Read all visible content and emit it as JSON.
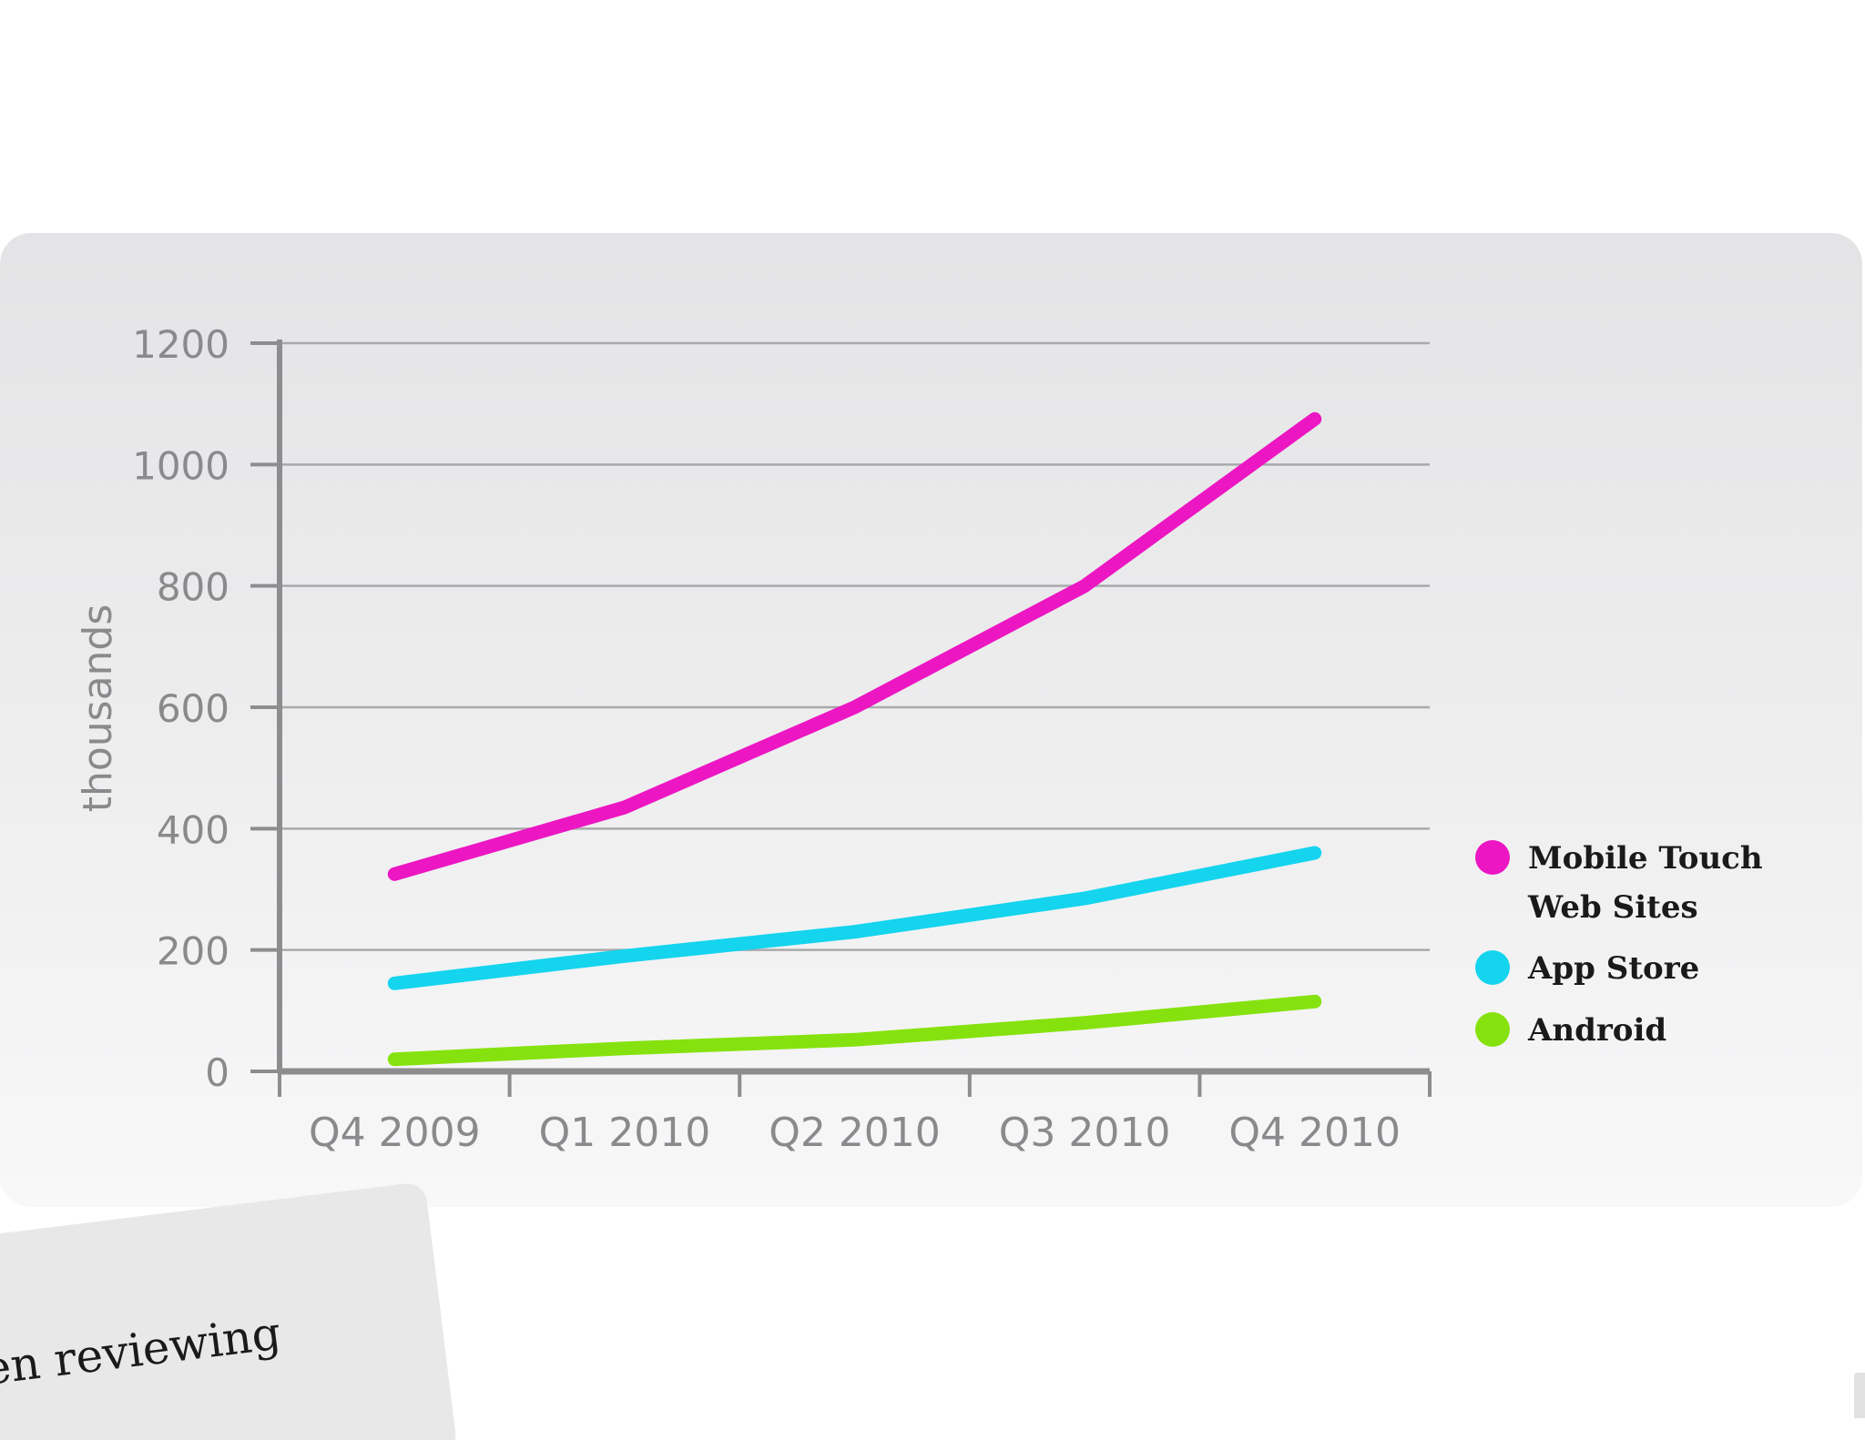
{
  "chart_data": {
    "type": "line",
    "title": "",
    "xlabel": "",
    "ylabel": "thousands",
    "categories": [
      "Q4 2009",
      "Q1 2010",
      "Q2 2010",
      "Q3 2010",
      "Q4 2010"
    ],
    "ylim": [
      0,
      1200
    ],
    "yticks": [
      0,
      200,
      400,
      600,
      800,
      1000,
      1200
    ],
    "grid": true,
    "legend_position": "right",
    "series": [
      {
        "name": "Mobile Touch Web Sites",
        "legend_lines": [
          "Mobile Touch",
          "Web Sites"
        ],
        "color": "#ec16c3",
        "values": [
          325,
          435,
          600,
          800,
          1075
        ]
      },
      {
        "name": "App Store",
        "legend_lines": [
          "App Store"
        ],
        "color": "#14d4ee",
        "values": [
          145,
          190,
          230,
          285,
          360
        ]
      },
      {
        "name": "Android",
        "legend_lines": [
          "Android"
        ],
        "color": "#86e20e",
        "values": [
          20,
          38,
          52,
          80,
          115
        ]
      }
    ]
  },
  "note": {
    "text": "en reviewing"
  }
}
